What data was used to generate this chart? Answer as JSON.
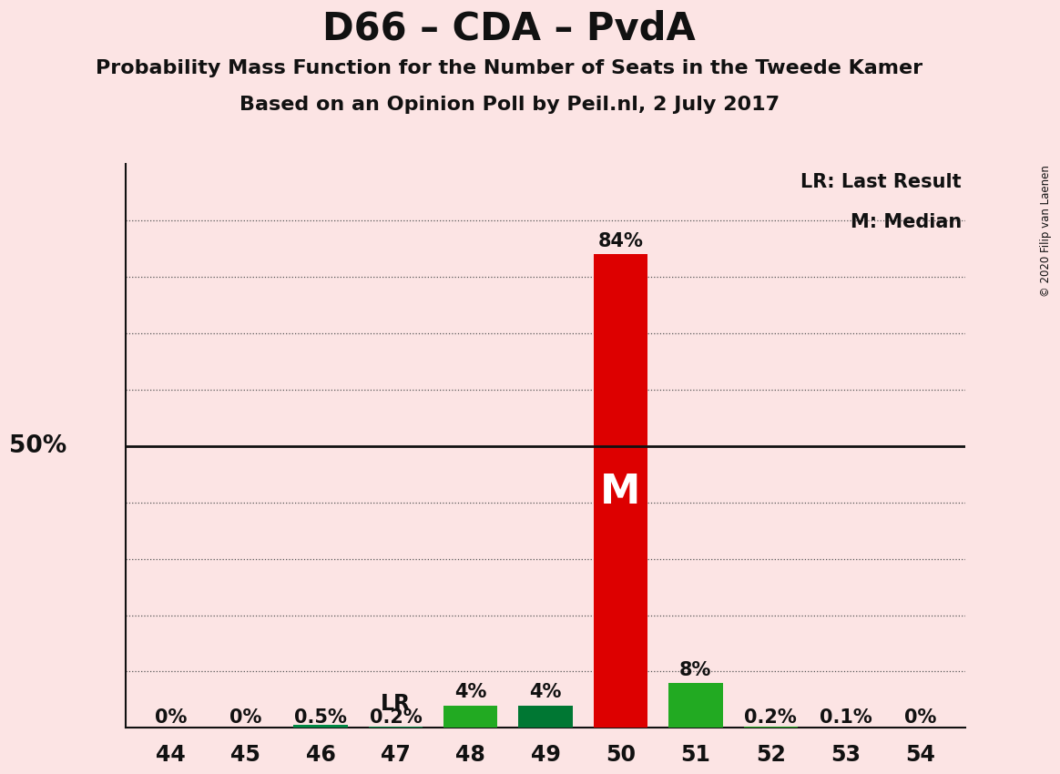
{
  "title": "D66 – CDA – PvdA",
  "subtitle1": "Probability Mass Function for the Number of Seats in the Tweede Kamer",
  "subtitle2": "Based on an Opinion Poll by Peil.nl, 2 July 2017",
  "copyright": "© 2020 Filip van Laenen",
  "legend_lr": "LR: Last Result",
  "legend_m": "M: Median",
  "background_color": "#fce4e4",
  "categories": [
    44,
    45,
    46,
    47,
    48,
    49,
    50,
    51,
    52,
    53,
    54
  ],
  "values": [
    0.0,
    0.0,
    0.005,
    0.002,
    0.04,
    0.04,
    0.84,
    0.08,
    0.002,
    0.001,
    0.0
  ],
  "bar_colors": [
    "#22aa22",
    "#22aa22",
    "#008844",
    "#008844",
    "#22aa22",
    "#007733",
    "#dd0000",
    "#22aa22",
    "#22aa22",
    "#22aa22",
    "#22aa22"
  ],
  "labels": [
    "0%",
    "0%",
    "0.5%",
    "0.2%",
    "4%",
    "4%",
    "84%",
    "8%",
    "0.2%",
    "0.1%",
    "0%"
  ],
  "median_seat": 50,
  "last_result_seat": 47,
  "ylabel_50": "50%",
  "dotted_line_color": "#555555",
  "solid_line_color": "#111111",
  "text_color": "#111111"
}
